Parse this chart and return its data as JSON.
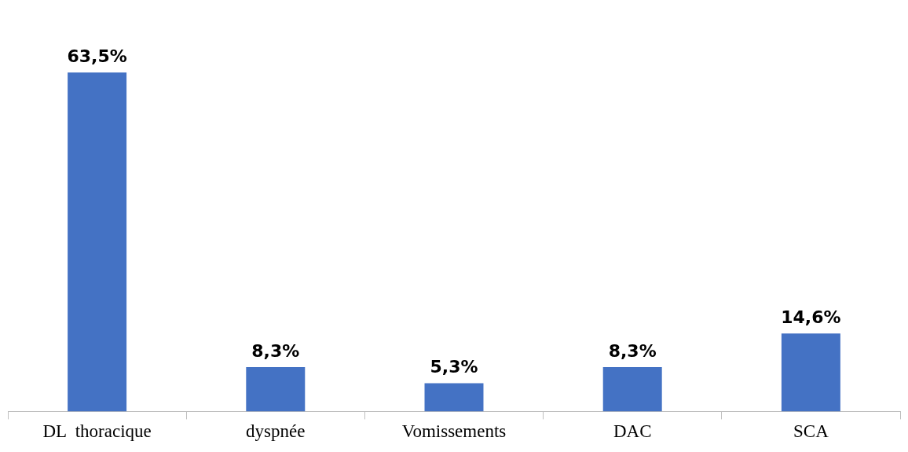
{
  "chart_data": {
    "type": "bar",
    "categories": [
      "DL  thoracique",
      "dyspnée",
      "Vomissements",
      "DAC",
      "SCA"
    ],
    "values": [
      63.5,
      8.3,
      5.3,
      8.3,
      14.6
    ],
    "color": "#4472c4",
    "value_labels": [
      "63,5%",
      "8,3%",
      "5,3%",
      "8,3%",
      "14,6%"
    ],
    "grid": false,
    "legend": false
  }
}
